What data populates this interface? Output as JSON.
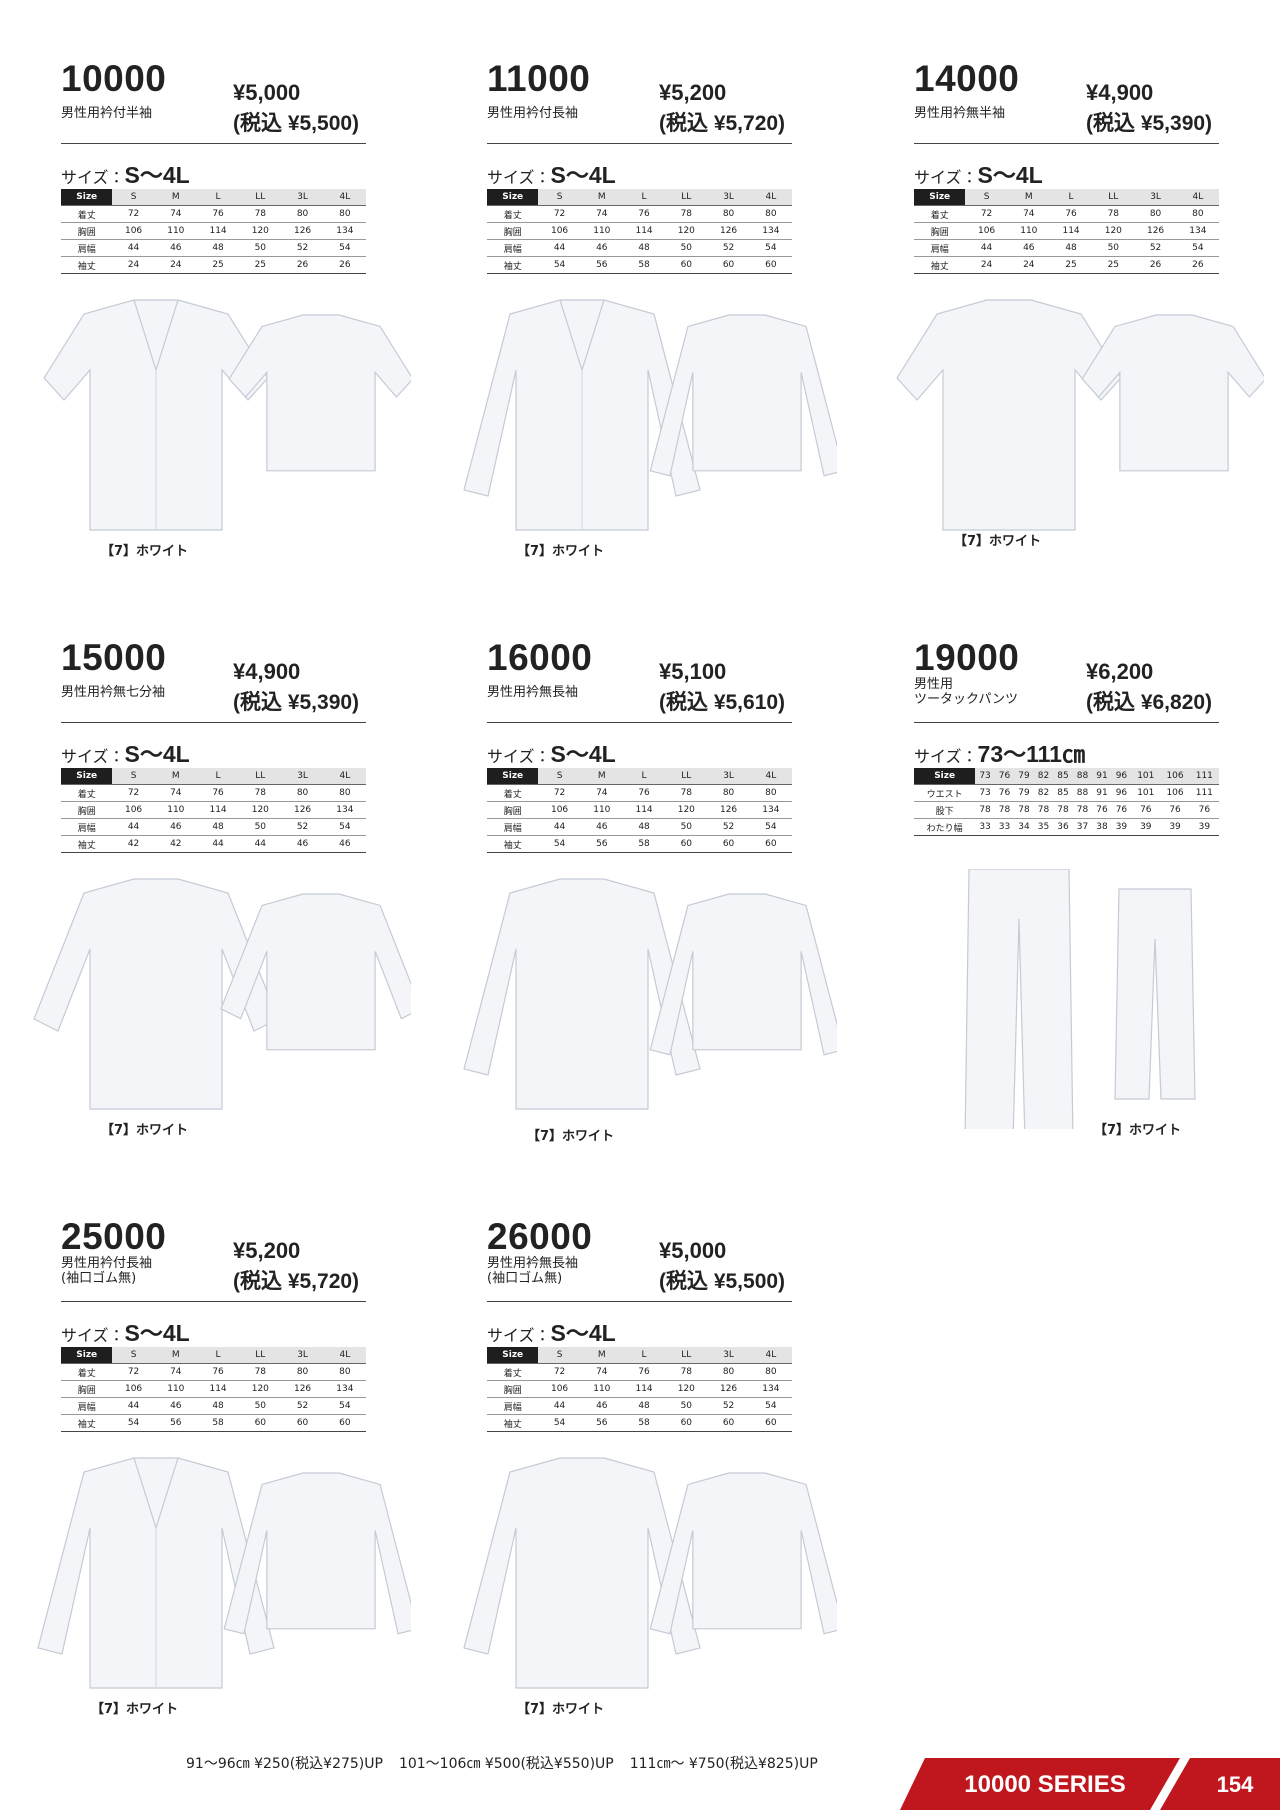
{
  "products": [
    {
      "code": "10000",
      "name": [
        "男性用衿付半袖"
      ],
      "price": "¥5,000",
      "price_tax": "(税込 ¥5,500)",
      "size_label": "サイズ：",
      "size_range": "S〜4L",
      "table": {
        "header": [
          "Size",
          "S",
          "M",
          "L",
          "LL",
          "3L",
          "4L"
        ],
        "rows": [
          [
            "着丈",
            72,
            74,
            76,
            78,
            80,
            80
          ],
          [
            "胸囲",
            106,
            110,
            114,
            120,
            126,
            134
          ],
          [
            "肩幅",
            44,
            46,
            48,
            50,
            52,
            54
          ],
          [
            "袖丈",
            24,
            24,
            25,
            25,
            26,
            26
          ]
        ]
      },
      "color": "【7】ホワイト"
    },
    {
      "code": "11000",
      "name": [
        "男性用衿付長袖"
      ],
      "price": "¥5,200",
      "price_tax": "(税込 ¥5,720)",
      "size_label": "サイズ：",
      "size_range": "S〜4L",
      "table": {
        "header": [
          "Size",
          "S",
          "M",
          "L",
          "LL",
          "3L",
          "4L"
        ],
        "rows": [
          [
            "着丈",
            72,
            74,
            76,
            78,
            80,
            80
          ],
          [
            "胸囲",
            106,
            110,
            114,
            120,
            126,
            134
          ],
          [
            "肩幅",
            44,
            46,
            48,
            50,
            52,
            54
          ],
          [
            "袖丈",
            54,
            56,
            58,
            60,
            60,
            60
          ]
        ]
      },
      "color": "【7】ホワイト"
    },
    {
      "code": "14000",
      "name": [
        "男性用衿無半袖"
      ],
      "price": "¥4,900",
      "price_tax": "(税込 ¥5,390)",
      "size_label": "サイズ：",
      "size_range": "S〜4L",
      "table": {
        "header": [
          "Size",
          "S",
          "M",
          "L",
          "LL",
          "3L",
          "4L"
        ],
        "rows": [
          [
            "着丈",
            72,
            74,
            76,
            78,
            80,
            80
          ],
          [
            "胸囲",
            106,
            110,
            114,
            120,
            126,
            134
          ],
          [
            "肩幅",
            44,
            46,
            48,
            50,
            52,
            54
          ],
          [
            "袖丈",
            24,
            24,
            25,
            25,
            26,
            26
          ]
        ]
      },
      "color": "【7】ホワイト"
    },
    {
      "code": "15000",
      "name": [
        "男性用衿無七分袖"
      ],
      "price": "¥4,900",
      "price_tax": "(税込 ¥5,390)",
      "size_label": "サイズ：",
      "size_range": "S〜4L",
      "table": {
        "header": [
          "Size",
          "S",
          "M",
          "L",
          "LL",
          "3L",
          "4L"
        ],
        "rows": [
          [
            "着丈",
            72,
            74,
            76,
            78,
            80,
            80
          ],
          [
            "胸囲",
            106,
            110,
            114,
            120,
            126,
            134
          ],
          [
            "肩幅",
            44,
            46,
            48,
            50,
            52,
            54
          ],
          [
            "袖丈",
            42,
            42,
            44,
            44,
            46,
            46
          ]
        ]
      },
      "color": "【7】ホワイト"
    },
    {
      "code": "16000",
      "name": [
        "男性用衿無長袖"
      ],
      "price": "¥5,100",
      "price_tax": "(税込 ¥5,610)",
      "size_label": "サイズ：",
      "size_range": "S〜4L",
      "table": {
        "header": [
          "Size",
          "S",
          "M",
          "L",
          "LL",
          "3L",
          "4L"
        ],
        "rows": [
          [
            "着丈",
            72,
            74,
            76,
            78,
            80,
            80
          ],
          [
            "胸囲",
            106,
            110,
            114,
            120,
            126,
            134
          ],
          [
            "肩幅",
            44,
            46,
            48,
            50,
            52,
            54
          ],
          [
            "袖丈",
            54,
            56,
            58,
            60,
            60,
            60
          ]
        ]
      },
      "color": "【7】ホワイト"
    },
    {
      "code": "19000",
      "name": [
        "男性用",
        "ツータックパンツ"
      ],
      "price": "¥6,200",
      "price_tax": "(税込 ¥6,820)",
      "size_label": "サイズ：",
      "size_range": "73〜111㎝",
      "table": {
        "header": [
          "Size",
          73,
          76,
          79,
          82,
          85,
          88,
          91,
          96,
          101,
          106,
          111
        ],
        "rows": [
          [
            "ウエスト",
            73,
            76,
            79,
            82,
            85,
            88,
            91,
            96,
            101,
            106,
            111
          ],
          [
            "股下",
            78,
            78,
            78,
            78,
            78,
            78,
            76,
            76,
            76,
            76,
            76
          ],
          [
            "わたり幅",
            33,
            33,
            34,
            35,
            36,
            37,
            38,
            39,
            39,
            39,
            39
          ]
        ]
      },
      "color": "【7】ホワイト"
    },
    {
      "code": "25000",
      "name": [
        "男性用衿付長袖",
        "(袖口ゴム無)"
      ],
      "price": "¥5,200",
      "price_tax": "(税込 ¥5,720)",
      "size_label": "サイズ：",
      "size_range": "S〜4L",
      "table": {
        "header": [
          "Size",
          "S",
          "M",
          "L",
          "LL",
          "3L",
          "4L"
        ],
        "rows": [
          [
            "着丈",
            72,
            74,
            76,
            78,
            80,
            80
          ],
          [
            "胸囲",
            106,
            110,
            114,
            120,
            126,
            134
          ],
          [
            "肩幅",
            44,
            46,
            48,
            50,
            52,
            54
          ],
          [
            "袖丈",
            54,
            56,
            58,
            60,
            60,
            60
          ]
        ]
      },
      "color": "【7】ホワイト"
    },
    {
      "code": "26000",
      "name": [
        "男性用衿無長袖",
        "(袖口ゴム無)"
      ],
      "price": "¥5,000",
      "price_tax": "(税込 ¥5,500)",
      "size_label": "サイズ：",
      "size_range": "S〜4L",
      "table": {
        "header": [
          "Size",
          "S",
          "M",
          "L",
          "LL",
          "3L",
          "4L"
        ],
        "rows": [
          [
            "着丈",
            72,
            74,
            76,
            78,
            80,
            80
          ],
          [
            "胸囲",
            106,
            110,
            114,
            120,
            126,
            134
          ],
          [
            "肩幅",
            44,
            46,
            48,
            50,
            52,
            54
          ],
          [
            "袖丈",
            54,
            56,
            58,
            60,
            60,
            60
          ]
        ]
      },
      "color": "【7】ホワイト"
    }
  ],
  "footer": {
    "surcharges": [
      "91〜96㎝ ¥250(税込¥275)UP",
      "101〜106㎝ ¥500(税込¥550)UP",
      "111㎝〜 ¥750(税込¥825)UP"
    ],
    "series": "10000 SERIES",
    "page": "154"
  }
}
